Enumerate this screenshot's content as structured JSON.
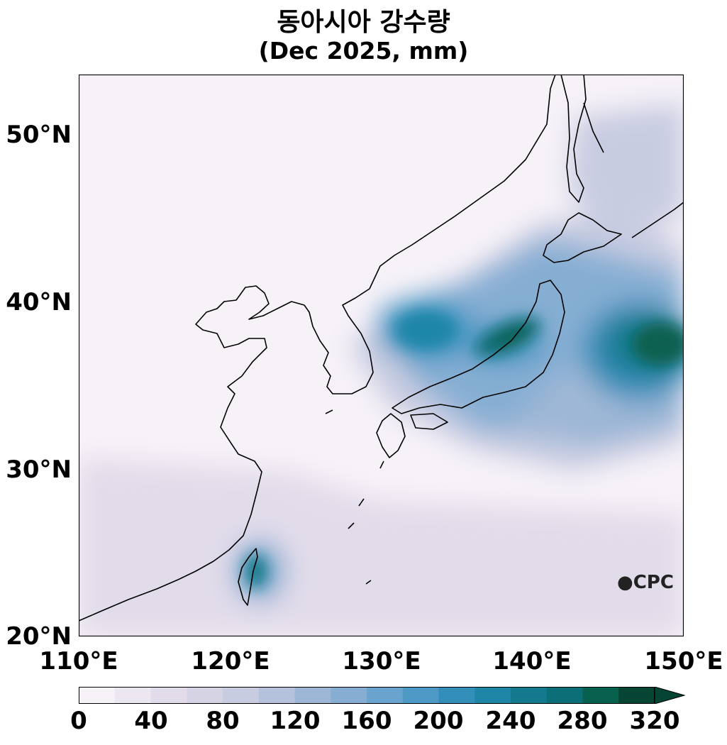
{
  "title": "동아시아 강수량",
  "subtitle": "(Dec 2025, mm)",
  "logo": "CPC",
  "map": {
    "lon_range": [
      110,
      150
    ],
    "lat_range": [
      20,
      53.5
    ],
    "lat_ticks": [
      {
        "value": 20,
        "label": "20°N"
      },
      {
        "value": 30,
        "label": "30°N"
      },
      {
        "value": 40,
        "label": "40°N"
      },
      {
        "value": 50,
        "label": "50°N"
      }
    ],
    "lon_ticks": [
      {
        "value": 110,
        "label": "110°E"
      },
      {
        "value": 120,
        "label": "120°E"
      },
      {
        "value": 130,
        "label": "130°E"
      },
      {
        "value": 140,
        "label": "140°E"
      },
      {
        "value": 150,
        "label": "150°E"
      }
    ]
  },
  "colorbar": {
    "levels": [
      0,
      20,
      40,
      60,
      80,
      100,
      120,
      140,
      160,
      180,
      200,
      220,
      240,
      260,
      280,
      300,
      320
    ],
    "tick_labels": [
      "0",
      "40",
      "80",
      "120",
      "160",
      "200",
      "240",
      "280",
      "320"
    ],
    "colors": [
      "#f7f2f8",
      "#ede7f1",
      "#e2dcea",
      "#d6d3e5",
      "#c8cce1",
      "#b5c2dc",
      "#9fb7d6",
      "#86aed3",
      "#68a4cd",
      "#4e99c5",
      "#348eba",
      "#1f86a8",
      "#137a8e",
      "#0c6f78",
      "#08614f",
      "#064533"
    ],
    "extend": "max"
  }
}
